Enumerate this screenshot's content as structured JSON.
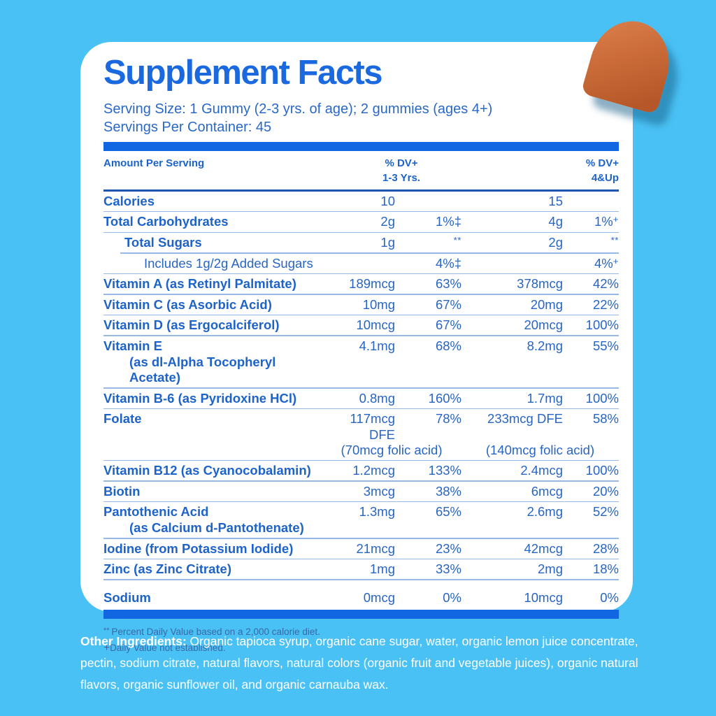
{
  "colors": {
    "background": "#4AC1F4",
    "card": "#FFFFFF",
    "title_blue": "#1B69DF",
    "bar_blue": "#1167E2",
    "text_blue": "#1D63C9",
    "value_blue": "#2765C5",
    "thin_rule": "#96B9E6",
    "header_rule": "#1D55AF",
    "footnote_blue": "#3A68A8",
    "ingredients_text": "#FFFFFF",
    "gummy_orange": "#CB6C3A"
  },
  "title": "Supplement Facts",
  "serving_size": "Serving Size: 1 Gummy (2-3 yrs. of age); 2 gummies (ages 4+)",
  "servings_per_container": "Servings Per Container: 45",
  "table": {
    "header": {
      "amount_label": "Amount Per Serving",
      "dv1_line1": "% DV+",
      "dv1_line2": "1-3 Yrs.",
      "dv2_line1": "% DV+",
      "dv2_line2": "4&Up"
    },
    "rows": [
      {
        "name": "Calories",
        "amt1": "10",
        "dv1": "",
        "amt2": "15",
        "dv2": ""
      },
      {
        "name": "Total Carbohydrates",
        "amt1": "2g",
        "dv1": "1%‡",
        "amt2": "4g",
        "dv2": "1%+"
      },
      {
        "name": "Total Sugars",
        "indent": 30,
        "border_indent": 24,
        "amt1": "1g",
        "dv1": "**",
        "amt2": "2g",
        "dv2": "**"
      },
      {
        "name": "Includes 1g/2g Added Sugars",
        "indent": 58,
        "bold": false,
        "amt1": "",
        "dv1": "4%‡",
        "amt2": "",
        "dv2": "4%+"
      },
      {
        "name": "Vitamin A (as Retinyl Palmitate)",
        "amt1": "189mcg",
        "dv1": "63%",
        "amt2": "378mcg",
        "dv2": "42%"
      },
      {
        "name": "Vitamin C (as Asorbic Acid)",
        "amt1": "10mg",
        "dv1": "67%",
        "amt2": "20mg",
        "dv2": "22%"
      },
      {
        "name": "Vitamin D (as Ergocalciferol)",
        "amt1": "10mcg",
        "dv1": "67%",
        "amt2": "20mcg",
        "dv2": "100%"
      },
      {
        "name": "Vitamin E",
        "name2": "(as dl-Alpha Tocopheryl Acetate)",
        "amt1": "4.1mg",
        "dv1": "68%",
        "amt2": "8.2mg",
        "dv2": "55%"
      },
      {
        "name": "Vitamin B-6 (as Pyridoxine HCl)",
        "amt1": "0.8mg",
        "dv1": "160%",
        "amt2": "1.7mg",
        "dv2": "100%"
      },
      {
        "name": "Folate",
        "amt1": "117mcg DFE",
        "dv1": "78%",
        "amt2": "233mcg DFE",
        "dv2": "58%",
        "sub1": "(70mcg folic acid)",
        "sub2": "(140mcg folic acid)"
      },
      {
        "name": "Vitamin B12 (as Cyanocobalamin)",
        "amt1": "1.2mcg",
        "dv1": "133%",
        "amt2": "2.4mcg",
        "dv2": "100%"
      },
      {
        "name": "Biotin",
        "amt1": "3mcg",
        "dv1": "38%",
        "amt2": "6mcg",
        "dv2": "20%"
      },
      {
        "name": "Pantothenic Acid",
        "name2": "(as Calcium d-Pantothenate)",
        "amt1": "1.3mg",
        "dv1": "65%",
        "amt2": "2.6mg",
        "dv2": "52%"
      },
      {
        "name": "Iodine (from Potassium Iodide)",
        "amt1": "21mcg",
        "dv1": "23%",
        "amt2": "42mcg",
        "dv2": "28%"
      },
      {
        "name": "Zinc (as Zinc Citrate)",
        "amt1": "1mg",
        "dv1": "33%",
        "amt2": "2mg",
        "dv2": "18%"
      },
      {
        "name": "Sodium",
        "amt1": "0mcg",
        "dv1": "0%",
        "amt2": "10mcg",
        "dv2": "0%",
        "pad_top": 14,
        "no_border": true
      }
    ]
  },
  "footnotes": [
    {
      "sym": "**",
      "text": "Percent Daily Value based on a 2,000 calorie diet."
    },
    {
      "sym": "+",
      "text": "Daily Value not established."
    }
  ],
  "other_ingredients": {
    "label": "Other Ingredients:",
    "text": " Organic tapioca syrup, organic cane sugar, water, organic lemon juice concentrate, pectin, sodium citrate, natural flavors, natural colors (organic fruit and vegetable juices), organic natural flavors, organic sunflower oil, and organic carnauba wax."
  },
  "gummy": {
    "description": "orange gummy"
  }
}
